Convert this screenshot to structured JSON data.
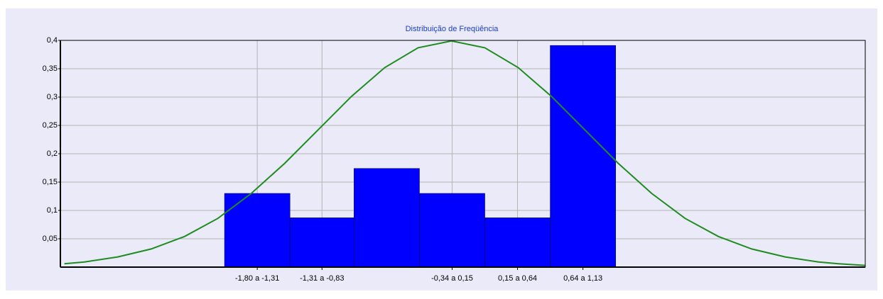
{
  "chart_data": {
    "type": "histogram",
    "title": "Distribuição de Freqüência",
    "bins": [
      -1.8,
      -1.31,
      -0.83,
      -0.34,
      0.15,
      0.64,
      1.13
    ],
    "values": [
      0.13,
      0.087,
      0.174,
      0.13,
      0.087,
      0.391
    ],
    "bin_labels": [
      "-1,80 a -1,31",
      "-1,31 a -0,83",
      null,
      "-0,34 a 0,15",
      "0,15 a 0,64",
      "0,64 a 1,13"
    ],
    "color": "#0000ff",
    "curve": {
      "color": "#1e8c1e",
      "x": [
        -3.0,
        -2.85,
        -2.6,
        -2.35,
        -2.1,
        -1.85,
        -1.6,
        -1.35,
        -1.1,
        -0.85,
        -0.6,
        -0.35,
        -0.1,
        0.15,
        0.4,
        0.65,
        0.9,
        1.15,
        1.4,
        1.65,
        1.9,
        2.15,
        2.4,
        2.65,
        2.8,
        3.0
      ],
      "values": [
        0.006,
        0.009,
        0.018,
        0.032,
        0.054,
        0.086,
        0.13,
        0.183,
        0.242,
        0.301,
        0.352,
        0.387,
        0.399,
        0.387,
        0.352,
        0.301,
        0.242,
        0.183,
        0.13,
        0.086,
        0.054,
        0.032,
        0.018,
        0.009,
        0.006,
        0.003
      ]
    },
    "xlim": [
      -3.03,
      3.0
    ],
    "ylim": [
      0,
      0.4
    ],
    "yticks": [
      {
        "value": 0.05,
        "label": "0,05"
      },
      {
        "value": 0.1,
        "label": "0,1"
      },
      {
        "value": 0.15,
        "label": "0,15"
      },
      {
        "value": 0.2,
        "label": "0,2"
      },
      {
        "value": 0.25,
        "label": "0,25"
      },
      {
        "value": 0.3,
        "label": "0,3"
      },
      {
        "value": 0.35,
        "label": "0,35"
      },
      {
        "value": 0.4,
        "label": "0,4"
      }
    ],
    "grid": true
  }
}
